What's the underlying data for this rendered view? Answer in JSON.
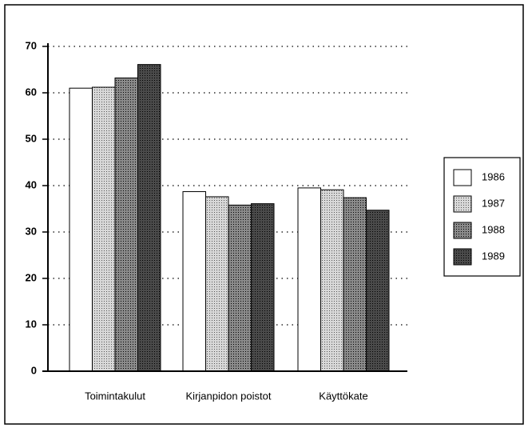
{
  "chart_data": {
    "type": "bar",
    "categories": [
      "Toimintakulut",
      "Kirjanpidon poistot",
      "Käyttökate"
    ],
    "series": [
      {
        "name": "1986",
        "color": "#ffffff",
        "values": [
          61,
          38.7,
          39.5
        ]
      },
      {
        "name": "1987",
        "color": "#d8d8d8",
        "values": [
          61.2,
          37.6,
          39.1
        ]
      },
      {
        "name": "1988",
        "color": "#8a8a8a",
        "values": [
          63.2,
          35.8,
          37.4
        ]
      },
      {
        "name": "1989",
        "color": "#4a4a4a",
        "values": [
          66.1,
          36.1,
          34.7
        ]
      }
    ],
    "ylim": [
      0,
      70
    ],
    "yticks": [
      0,
      10,
      20,
      30,
      40,
      50,
      60,
      70
    ],
    "grid": true
  }
}
